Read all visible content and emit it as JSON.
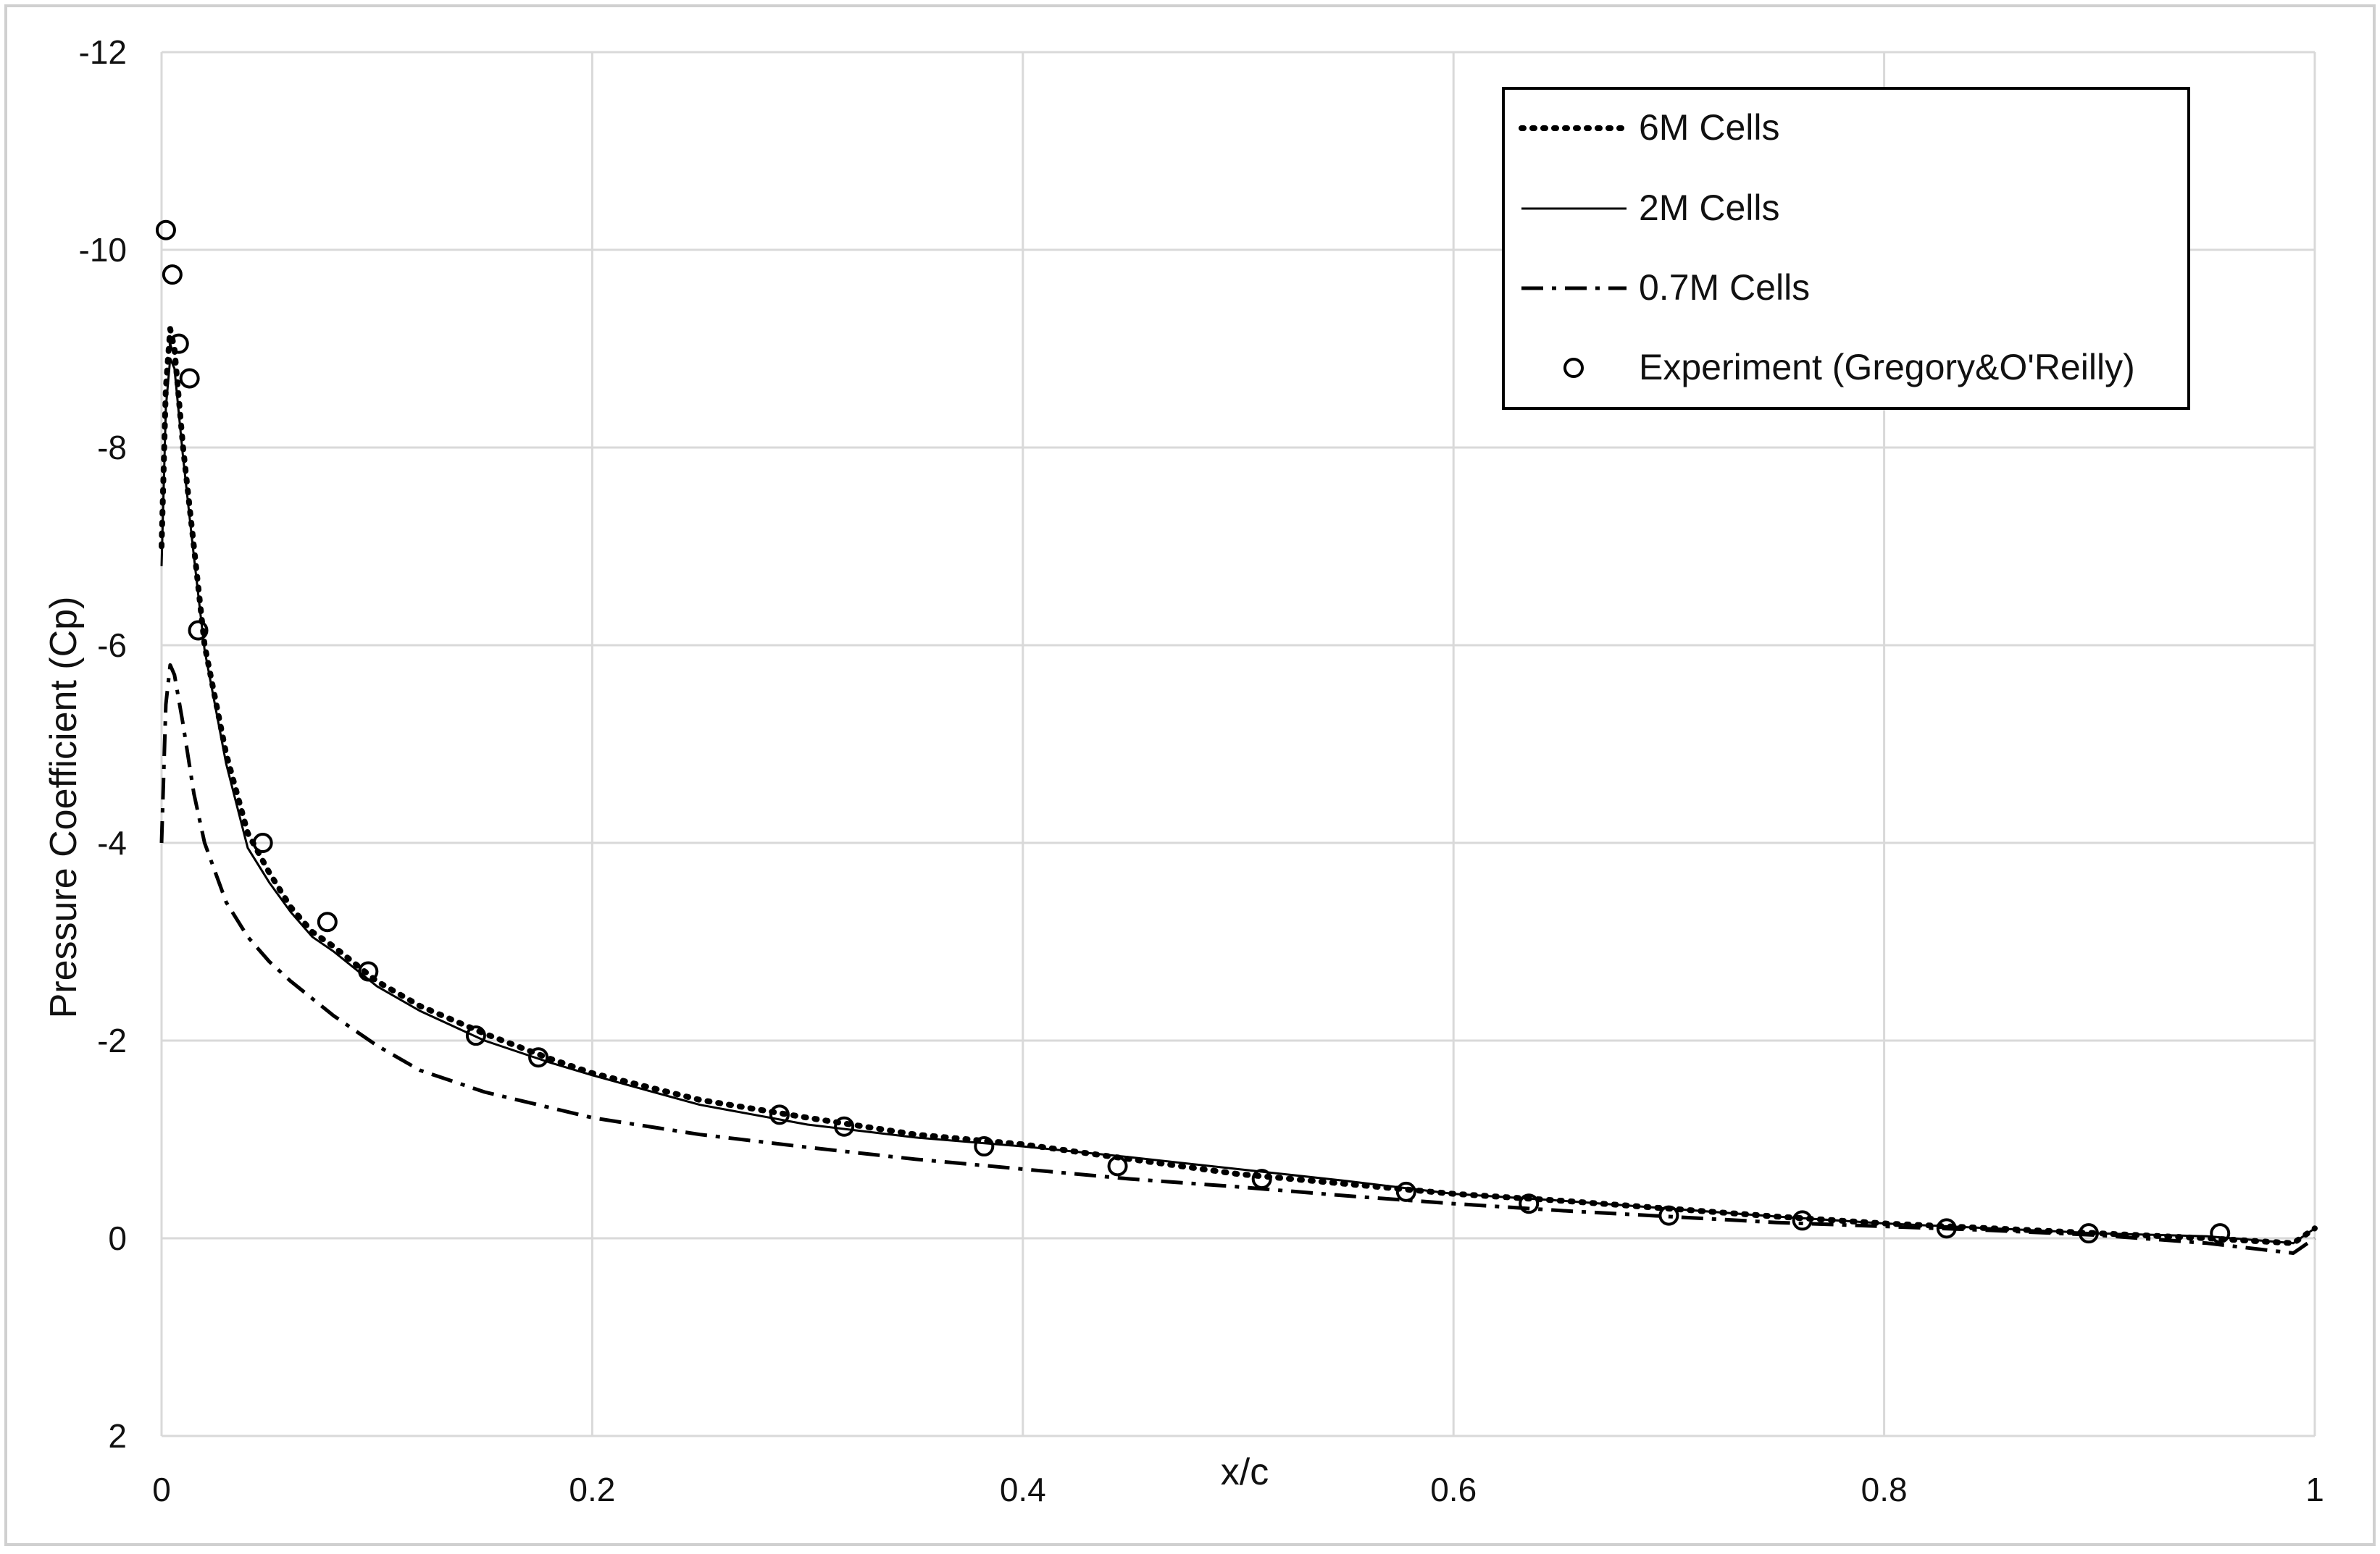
{
  "chart_data": {
    "type": "line",
    "xlabel": "x/c",
    "ylabel": "Pressure Coefficient (Cp)",
    "xlim": [
      0,
      1
    ],
    "ylim": [
      2,
      -12
    ],
    "y_axis_inverted": true,
    "grid": true,
    "legend_position": "top-right",
    "x_ticks": [
      "0",
      "0.2",
      "0.4",
      "0.6",
      "0.8",
      "1"
    ],
    "y_ticks": [
      "-12",
      "-10",
      "-8",
      "-6",
      "-4",
      "-2",
      "0",
      "2"
    ],
    "series": [
      {
        "name": "6M Cells",
        "style": "dotted",
        "color": "#000000",
        "x": [
          0,
          0.002,
          0.004,
          0.006,
          0.01,
          0.015,
          0.02,
          0.03,
          0.04,
          0.05,
          0.06,
          0.07,
          0.08,
          0.1,
          0.12,
          0.15,
          0.18,
          0.2,
          0.25,
          0.3,
          0.35,
          0.4,
          0.45,
          0.5,
          0.55,
          0.6,
          0.65,
          0.7,
          0.75,
          0.8,
          0.85,
          0.9,
          0.95,
          0.99,
          1.0
        ],
        "y": [
          -7.0,
          -8.6,
          -9.2,
          -9.0,
          -8.0,
          -7.0,
          -6.0,
          -4.9,
          -4.1,
          -3.7,
          -3.35,
          -3.1,
          -2.95,
          -2.6,
          -2.35,
          -2.07,
          -1.82,
          -1.67,
          -1.4,
          -1.22,
          -1.05,
          -0.95,
          -0.8,
          -0.65,
          -0.55,
          -0.45,
          -0.38,
          -0.3,
          -0.22,
          -0.15,
          -0.1,
          -0.05,
          0.0,
          0.05,
          -0.1
        ]
      },
      {
        "name": "2M Cells",
        "style": "solid",
        "color": "#000000",
        "x": [
          0,
          0.002,
          0.004,
          0.006,
          0.01,
          0.015,
          0.02,
          0.03,
          0.04,
          0.05,
          0.06,
          0.07,
          0.08,
          0.1,
          0.12,
          0.15,
          0.18,
          0.2,
          0.25,
          0.3,
          0.35,
          0.4,
          0.45,
          0.5,
          0.55,
          0.6,
          0.65,
          0.7,
          0.75,
          0.8,
          0.85,
          0.9,
          0.95,
          0.99,
          1.0
        ],
        "y": [
          -6.8,
          -8.4,
          -8.9,
          -8.8,
          -7.9,
          -6.9,
          -5.95,
          -4.8,
          -3.95,
          -3.6,
          -3.3,
          -3.05,
          -2.9,
          -2.55,
          -2.3,
          -2.0,
          -1.78,
          -1.65,
          -1.35,
          -1.15,
          -1.02,
          -0.93,
          -0.82,
          -0.7,
          -0.58,
          -0.45,
          -0.38,
          -0.3,
          -0.22,
          -0.15,
          -0.1,
          -0.05,
          -0.02,
          0.05,
          -0.1
        ]
      },
      {
        "name": "0.7M Cells",
        "style": "dashdot",
        "color": "#000000",
        "x": [
          0,
          0.002,
          0.004,
          0.006,
          0.01,
          0.015,
          0.02,
          0.03,
          0.04,
          0.05,
          0.06,
          0.08,
          0.1,
          0.12,
          0.15,
          0.2,
          0.25,
          0.3,
          0.35,
          0.4,
          0.45,
          0.5,
          0.55,
          0.6,
          0.65,
          0.7,
          0.75,
          0.8,
          0.85,
          0.9,
          0.95,
          0.99,
          1.0
        ],
        "y": [
          -4.0,
          -5.4,
          -5.8,
          -5.7,
          -5.2,
          -4.5,
          -4.0,
          -3.4,
          -3.05,
          -2.8,
          -2.6,
          -2.25,
          -1.95,
          -1.7,
          -1.48,
          -1.22,
          -1.05,
          -0.92,
          -0.8,
          -0.7,
          -0.6,
          -0.52,
          -0.43,
          -0.35,
          -0.28,
          -0.22,
          -0.16,
          -0.12,
          -0.08,
          -0.03,
          0.05,
          0.15,
          0.0
        ]
      }
    ],
    "experiment": {
      "name": "Experiment (Gregory&O'Reilly)",
      "marker": "open-circle",
      "x": [
        0.002,
        0.005,
        0.008,
        0.013,
        0.017,
        0.047,
        0.077,
        0.096,
        0.146,
        0.175,
        0.287,
        0.317,
        0.382,
        0.444,
        0.511,
        0.578,
        0.635,
        0.7,
        0.762,
        0.829,
        0.895,
        0.956
      ],
      "y": [
        -10.2,
        -9.75,
        -9.05,
        -8.7,
        -6.15,
        -4.0,
        -3.2,
        -2.7,
        -2.05,
        -1.83,
        -1.25,
        -1.13,
        -0.93,
        -0.73,
        -0.6,
        -0.47,
        -0.35,
        -0.23,
        -0.18,
        -0.1,
        -0.05,
        -0.05
      ]
    }
  }
}
